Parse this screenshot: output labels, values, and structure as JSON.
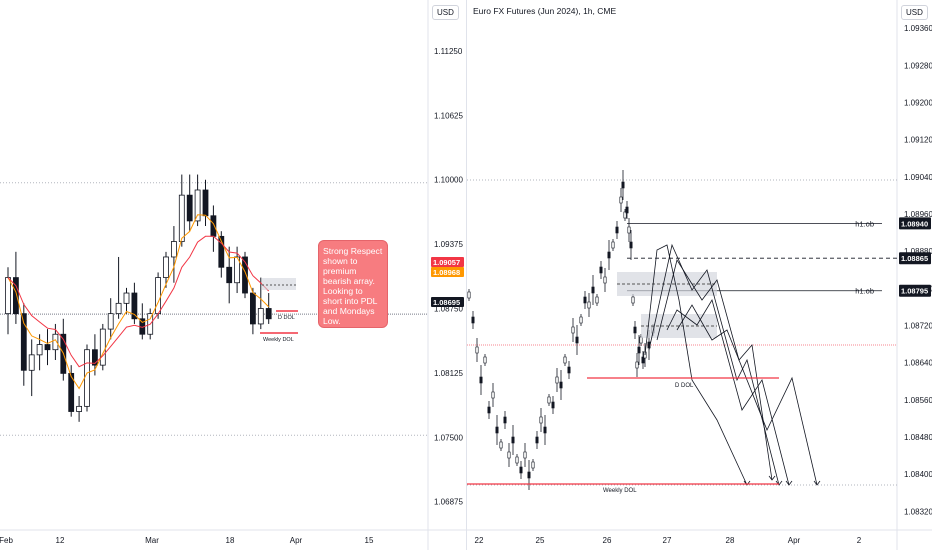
{
  "left": {
    "currency_button": "USD",
    "callout": "Strong Respect shown to premium bearish array. Looking to short into PDL and Mondays Low.",
    "labels": {
      "d_dol": "D DOL",
      "weekly_dol": "Weekly DOL"
    },
    "price_tags": [
      "1.09057",
      "1.08968",
      "1.08695"
    ],
    "colors": {
      "ema_red": "#f23645",
      "ema_orange": "#ff9800",
      "candle": "#131722",
      "callout": "#f77c80"
    }
  },
  "right": {
    "title": "Euro FX Futures (Jun 2024), 1h, CME",
    "currency_button": "USD",
    "labels": {
      "h1_ob_top": "h1.ob",
      "h1_ob_bottom": "h1.ob",
      "d_dol": "D DOL",
      "weekly_dol": "Weekly DOL"
    },
    "price_tags": [
      "1.08940",
      "1.08865",
      "1.08795"
    ],
    "colors": {
      "level_red": "#f23645",
      "zone": "#d1d4dc"
    }
  },
  "chart_data": [
    {
      "type": "candlestick",
      "title": "",
      "x_ticks": [
        "Feb",
        "12",
        "Mar",
        "18",
        "Apr",
        "15"
      ],
      "y_ticks": [
        "1.11250",
        "1.10625",
        "1.10000",
        "1.09375",
        "1.08750",
        "1.08125",
        "1.07500",
        "1.06875"
      ],
      "ylim": [
        1.066,
        1.1155
      ],
      "candles_ohlc": [
        [
          1.087,
          1.0915,
          1.085,
          1.0905
        ],
        [
          1.0905,
          1.093,
          1.086,
          1.087
        ],
        [
          1.087,
          1.088,
          1.08,
          1.0815
        ],
        [
          1.0815,
          1.0845,
          1.079,
          1.083
        ],
        [
          1.083,
          1.085,
          1.0815,
          1.084
        ],
        [
          1.084,
          1.0855,
          1.082,
          1.0835
        ],
        [
          1.0835,
          1.086,
          1.0825,
          1.085
        ],
        [
          1.085,
          1.0865,
          1.0805,
          1.0812
        ],
        [
          1.0812,
          1.082,
          1.077,
          1.0775
        ],
        [
          1.0775,
          1.079,
          1.0765,
          1.078
        ],
        [
          1.078,
          1.084,
          1.0775,
          1.0835
        ],
        [
          1.0835,
          1.085,
          1.081,
          1.082
        ],
        [
          1.082,
          1.086,
          1.0815,
          1.0855
        ],
        [
          1.0855,
          1.0885,
          1.0845,
          1.087
        ],
        [
          1.087,
          1.0925,
          1.0865,
          1.088
        ],
        [
          1.088,
          1.0895,
          1.087,
          1.089
        ],
        [
          1.089,
          1.09,
          1.086,
          1.0865
        ],
        [
          1.0865,
          1.088,
          1.0845,
          1.085
        ],
        [
          1.085,
          1.0875,
          1.0845,
          1.087
        ],
        [
          1.087,
          1.091,
          1.0865,
          1.0905
        ],
        [
          1.0905,
          1.093,
          1.0895,
          1.0925
        ],
        [
          1.0925,
          1.0955,
          1.09,
          1.094
        ],
        [
          1.094,
          1.1005,
          1.0935,
          1.0985
        ],
        [
          1.0985,
          1.1005,
          1.095,
          1.096
        ],
        [
          1.096,
          1.1005,
          1.0955,
          1.099
        ],
        [
          1.099,
          1.1,
          1.0955,
          1.0965
        ],
        [
          1.0965,
          1.0975,
          1.093,
          1.0945
        ],
        [
          1.0945,
          1.095,
          1.0905,
          1.0915
        ],
        [
          1.0915,
          1.0935,
          1.088,
          1.09
        ],
        [
          1.09,
          1.0935,
          1.089,
          1.0925
        ],
        [
          1.0925,
          1.093,
          1.0885,
          1.089
        ],
        [
          1.089,
          1.0895,
          1.085,
          1.086
        ],
        [
          1.086,
          1.0905,
          1.0855,
          1.0875
        ],
        [
          1.0875,
          1.089,
          1.086,
          1.0865
        ]
      ],
      "levels": [
        1.1,
        1.075,
        1.08695
      ]
    },
    {
      "type": "candlestick",
      "title": "Euro FX Futures (Jun 2024), 1h, CME",
      "x_ticks": [
        "22",
        "25",
        "26",
        "27",
        "28",
        "Apr",
        "2"
      ],
      "y_ticks": [
        "1.09360",
        "1.09280",
        "1.09200",
        "1.09120",
        "1.09040",
        "1.08960",
        "1.08880",
        "1.08800",
        "1.08720",
        "1.08640",
        "1.08560",
        "1.08480",
        "1.08400",
        "1.08320"
      ],
      "ylim": [
        1.0828,
        1.0941
      ],
      "levels": {
        "h1_ob_top": 1.0894,
        "dashed": 1.08865,
        "h1_ob_bottom": 1.08795,
        "d_dol": 1.0862,
        "weekly_dol": 1.084
      }
    }
  ]
}
